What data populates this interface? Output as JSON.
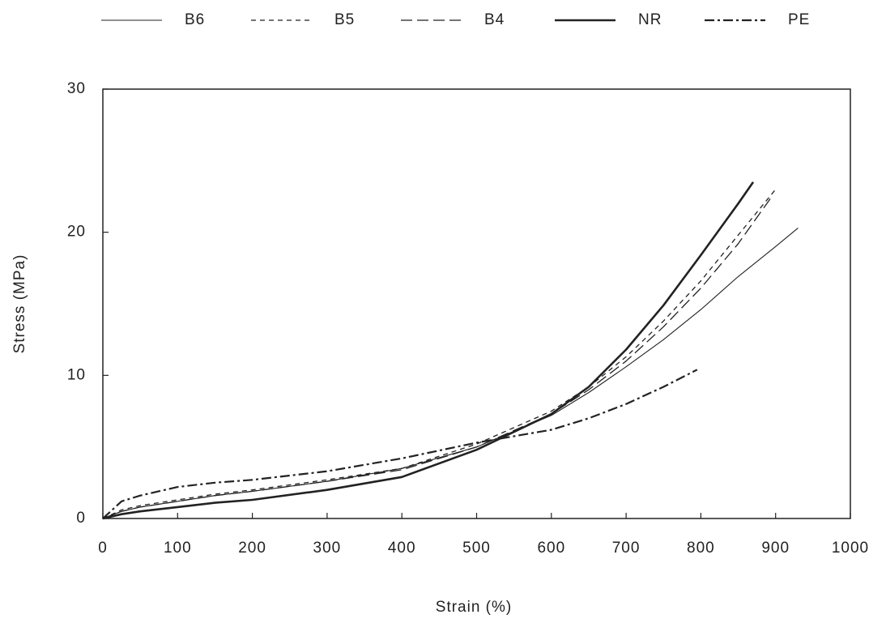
{
  "chart_data": {
    "type": "line",
    "x_label": "Strain (%)",
    "y_label": "Stress (MPa)",
    "xlim": [
      0,
      1000
    ],
    "xticks": [
      0,
      100,
      200,
      300,
      400,
      500,
      600,
      700,
      800,
      900,
      1000
    ],
    "ylim": [
      0,
      30
    ],
    "yticks": [
      0,
      10,
      20,
      30
    ],
    "series": [
      {
        "name": "B6",
        "color": "#222222",
        "x": [
          0,
          25,
          50,
          100,
          150,
          200,
          300,
          400,
          500,
          600,
          650,
          700,
          750,
          800,
          850,
          900,
          930
        ],
        "values": [
          0,
          0.5,
          0.8,
          1.2,
          1.6,
          1.9,
          2.6,
          3.5,
          5.0,
          7.2,
          8.8,
          10.6,
          12.5,
          14.6,
          16.9,
          19.0,
          20.3
        ]
      },
      {
        "name": "B5",
        "color": "#222222",
        "x": [
          0,
          25,
          50,
          100,
          150,
          200,
          300,
          400,
          500,
          600,
          650,
          700,
          750,
          800,
          850,
          900
        ],
        "values": [
          0,
          0.6,
          0.9,
          1.3,
          1.7,
          2.0,
          2.7,
          3.5,
          5.2,
          7.5,
          9.2,
          11.3,
          13.8,
          16.6,
          19.8,
          23.0
        ]
      },
      {
        "name": "B4",
        "color": "#222222",
        "x": [
          0,
          25,
          50,
          100,
          150,
          200,
          300,
          400,
          500,
          600,
          650,
          700,
          750,
          800,
          850,
          895
        ],
        "values": [
          0,
          0.5,
          0.8,
          1.2,
          1.6,
          1.9,
          2.6,
          3.4,
          5.0,
          7.3,
          9.0,
          11.0,
          13.4,
          16.1,
          19.2,
          22.5
        ]
      },
      {
        "name": "NR",
        "color": "#222222",
        "x": [
          0,
          25,
          50,
          100,
          150,
          200,
          300,
          400,
          500,
          600,
          650,
          700,
          750,
          800,
          850,
          870
        ],
        "values": [
          0,
          0.3,
          0.5,
          0.8,
          1.1,
          1.3,
          2.0,
          2.9,
          4.8,
          7.3,
          9.2,
          11.8,
          14.9,
          18.4,
          22.0,
          23.5
        ]
      },
      {
        "name": "PE",
        "color": "#222222",
        "x": [
          0,
          25,
          50,
          100,
          150,
          200,
          300,
          400,
          500,
          600,
          650,
          700,
          750,
          795
        ],
        "values": [
          0,
          1.2,
          1.6,
          2.2,
          2.5,
          2.7,
          3.3,
          4.2,
          5.3,
          6.2,
          7.0,
          8.0,
          9.2,
          10.4
        ]
      }
    ]
  }
}
